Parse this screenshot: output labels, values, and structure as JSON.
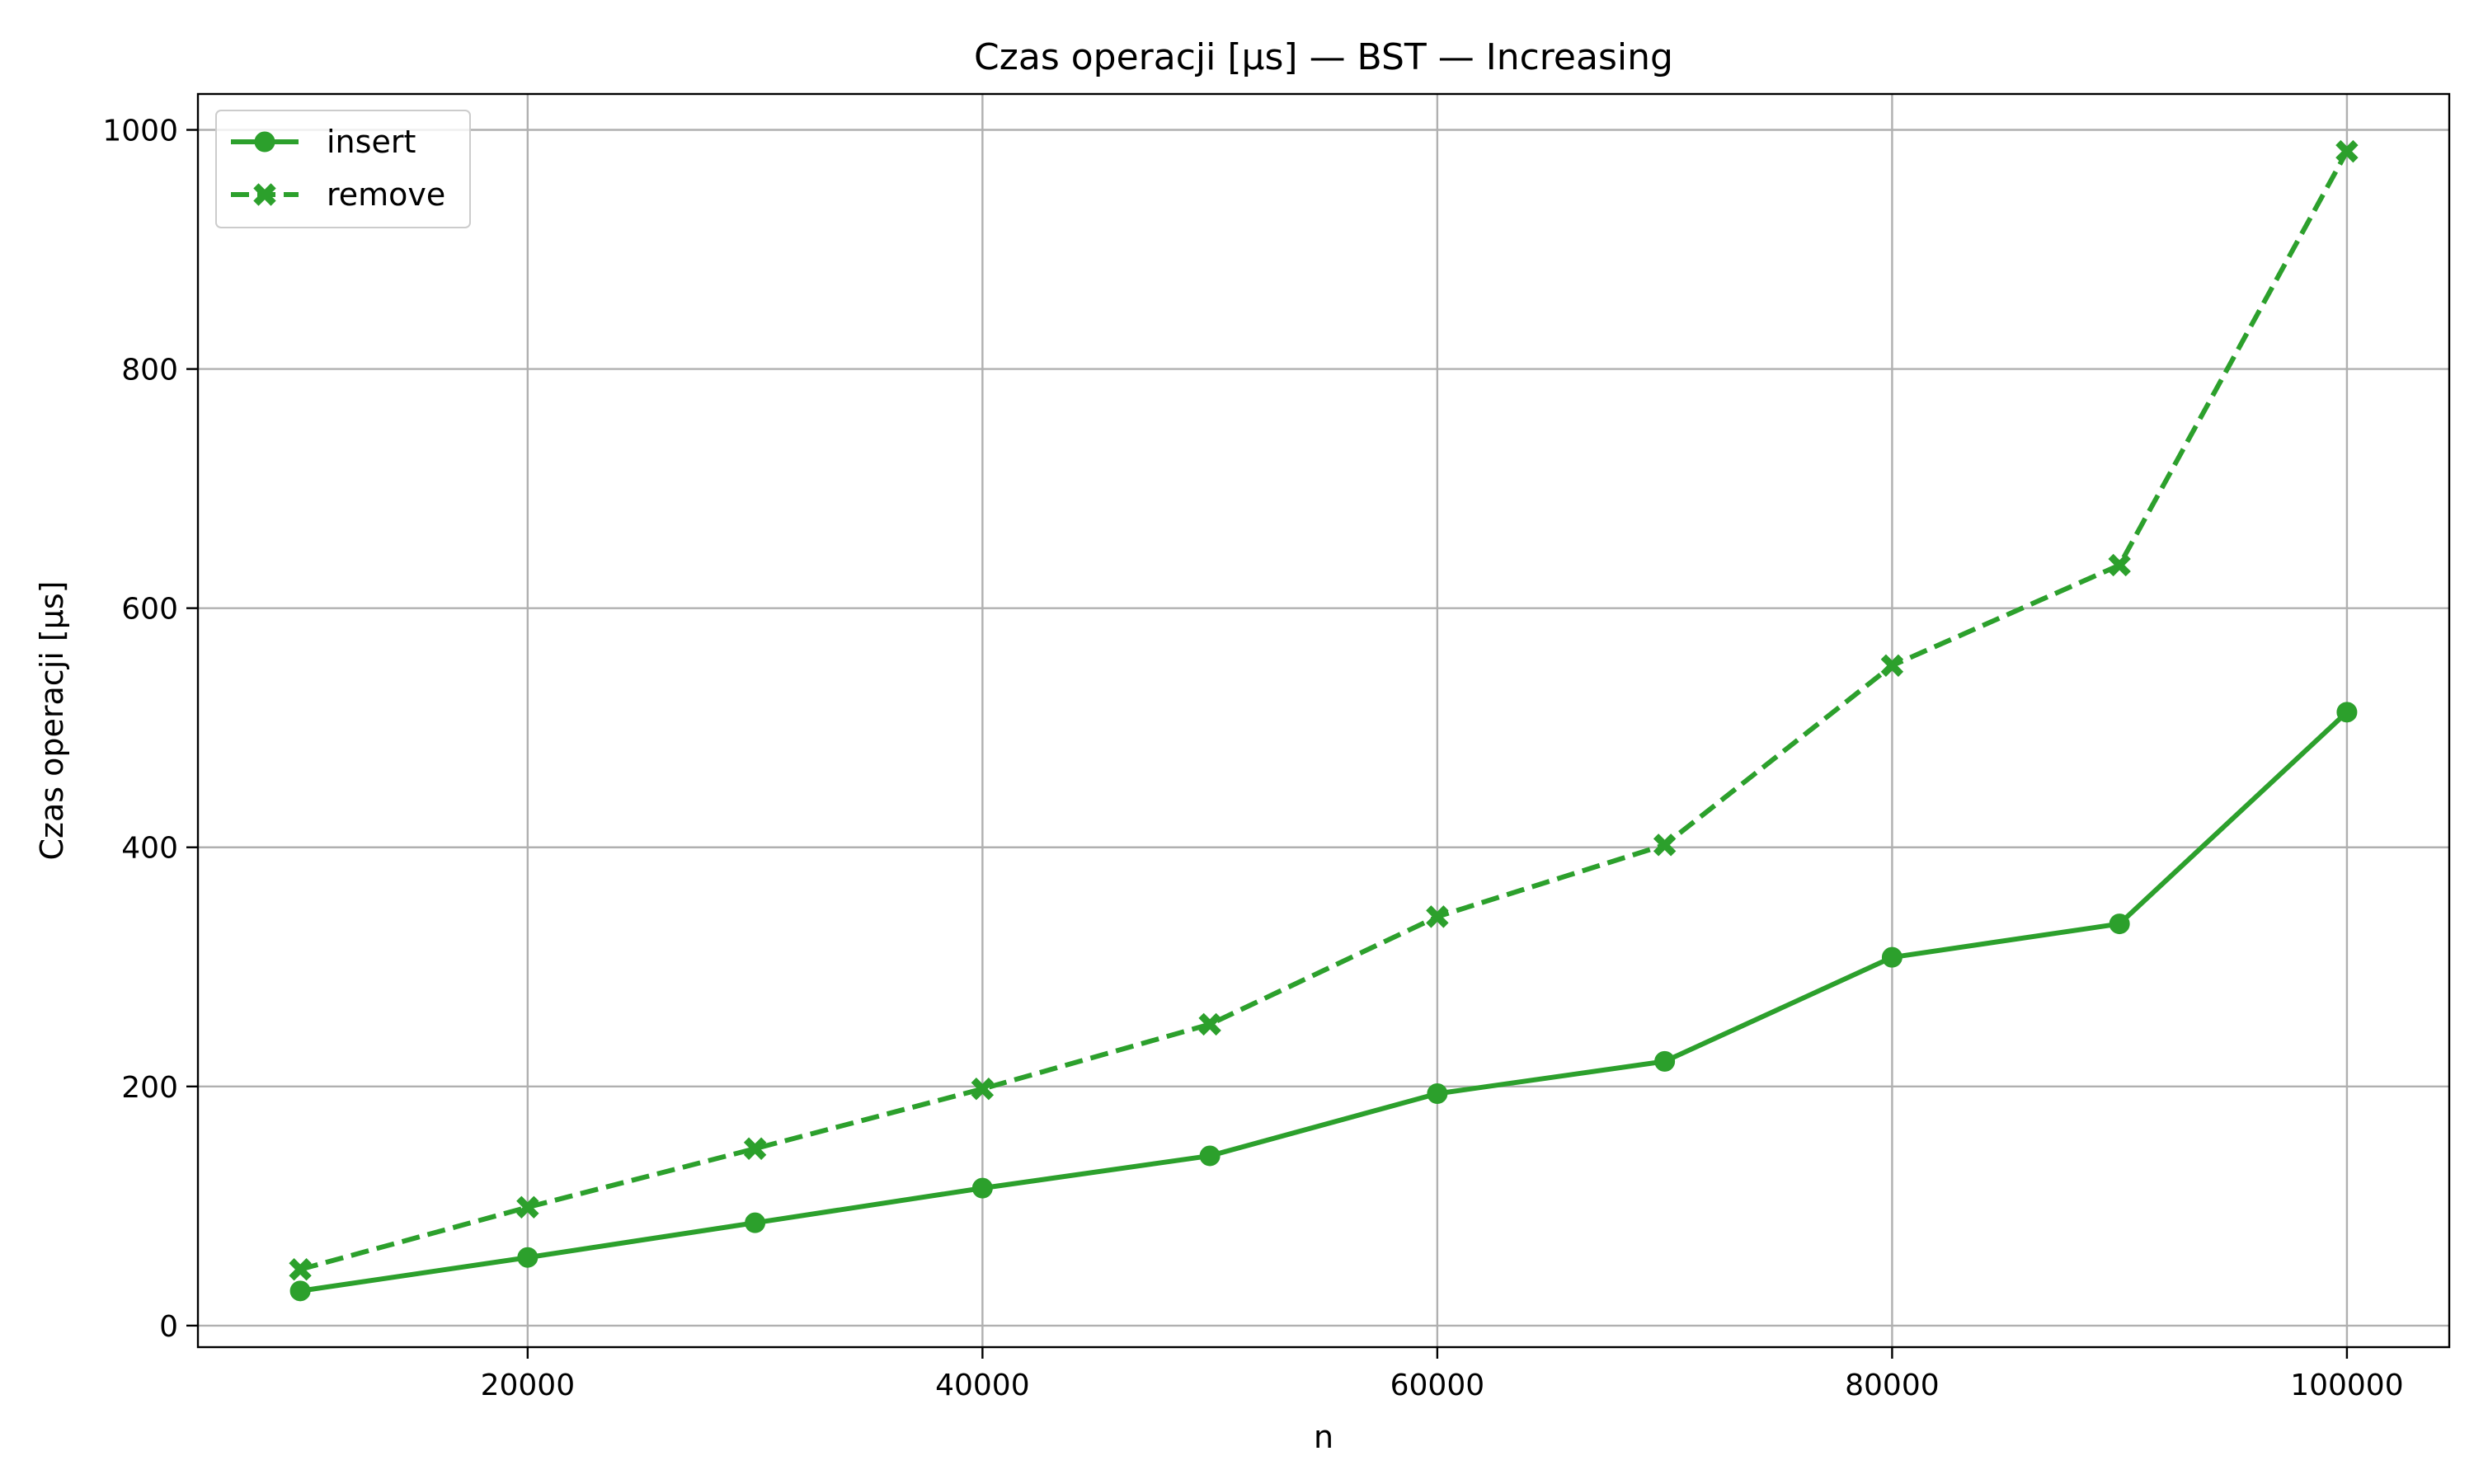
{
  "chart_data": {
    "type": "line",
    "title": "Czas operacji [µs] — BST — Increasing",
    "xlabel": "n",
    "ylabel": "Czas operacji [µs]",
    "x": [
      10000,
      20000,
      30000,
      40000,
      50000,
      60000,
      70000,
      80000,
      90000,
      100000
    ],
    "xlim": [
      5500,
      104500
    ],
    "ylim": [
      -18,
      1030
    ],
    "xticks": [
      20000,
      40000,
      60000,
      80000,
      100000
    ],
    "yticks": [
      0,
      200,
      400,
      600,
      800,
      1000
    ],
    "grid": true,
    "legend_position": "top-left",
    "series": [
      {
        "name": "insert",
        "values": [
          29,
          57,
          86,
          115,
          142,
          194,
          221,
          308,
          336,
          513
        ],
        "color": "#2ca02c",
        "line_style": "solid",
        "marker": "circle"
      },
      {
        "name": "remove",
        "values": [
          47,
          99,
          148,
          198,
          252,
          342,
          402,
          552,
          636,
          982
        ],
        "color": "#2ca02c",
        "line_style": "dashed",
        "marker": "x-filled"
      }
    ]
  }
}
